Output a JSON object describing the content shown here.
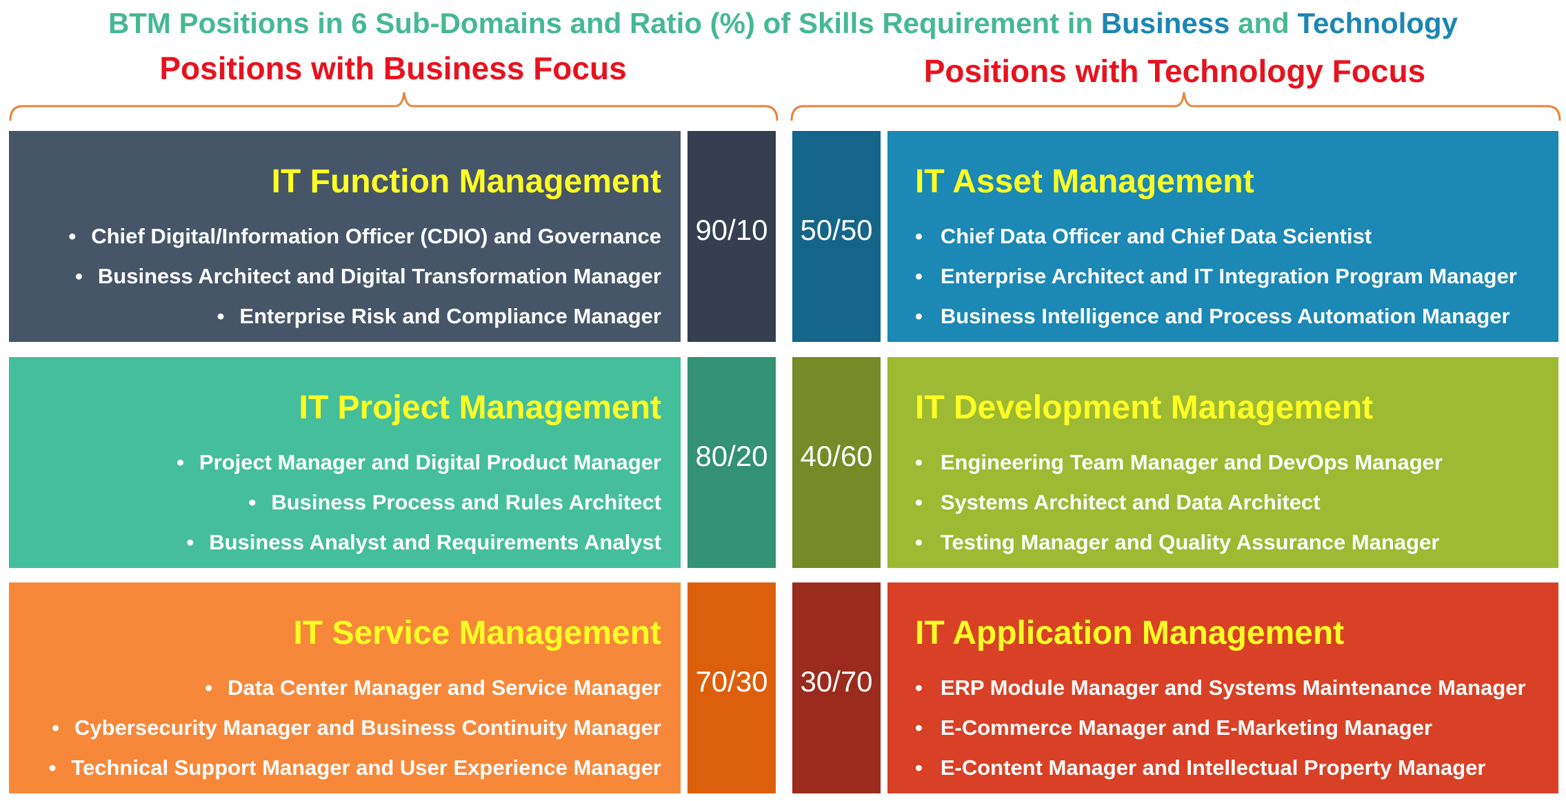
{
  "title": {
    "prefix": "BTM Positions in 6 Sub-Domains and Ratio (%) of Skills Requirement in ",
    "business": "Business",
    "and": " and ",
    "technology": "Technology"
  },
  "business_focus": "Positions with Business Focus",
  "technology_focus": "Positions with Technology Focus",
  "colors": {
    "title_green": "#45b894",
    "title_blue": "#1a86b3",
    "focus_red": "#e8121e",
    "brace_orange": "#e8833a",
    "heading_yellow": "#ffff26"
  },
  "left_blocks": [
    {
      "title": "IT Function Management",
      "items": [
        "Chief Digital/Information Officer (CDIO) and Governance",
        "Business Architect and Digital Transformation Manager",
        "Enterprise Risk and Compliance Manager"
      ],
      "ratio": "90/10",
      "color": "#475569",
      "ratio_color": "#353f4f"
    },
    {
      "title": "IT Project Management",
      "items": [
        "Project Manager and Digital Product Manager",
        "Business Process and Rules Architect",
        "Business Analyst and Requirements Analyst"
      ],
      "ratio": "80/20",
      "color": "#45bf9b",
      "ratio_color": "#339174"
    },
    {
      "title": "IT Service Management",
      "items": [
        "Data Center Manager and Service Manager",
        "Cybersecurity Manager and Business Continuity Manager",
        "Technical Support Manager and User Experience Manager"
      ],
      "ratio": "70/30",
      "color": "#f7883a",
      "ratio_color": "#dc5f0c"
    }
  ],
  "right_blocks": [
    {
      "title": "IT Asset Management",
      "items": [
        "Chief Data Officer and Chief Data Scientist",
        "Enterprise Architect and IT Integration Program Manager",
        "Business Intelligence and Process Automation Manager"
      ],
      "ratio": "50/50",
      "color": "#1b88b5",
      "ratio_color": "#146589"
    },
    {
      "title": "IT Development Management",
      "items": [
        "Engineering Team Manager and DevOps Manager",
        "Systems Architect and Data Architect",
        "Testing Manager and Quality Assurance Manager"
      ],
      "ratio": "40/60",
      "color": "#9dba32",
      "ratio_color": "#768b27"
    },
    {
      "title": "IT Application Management",
      "items": [
        "ERP Module Manager and Systems Maintenance Manager",
        "E-Commerce Manager and E-Marketing Manager",
        "E-Content Manager and Intellectual Property Manager"
      ],
      "ratio": "30/70",
      "color": "#d84126",
      "ratio_color": "#9b2b1d"
    }
  ]
}
